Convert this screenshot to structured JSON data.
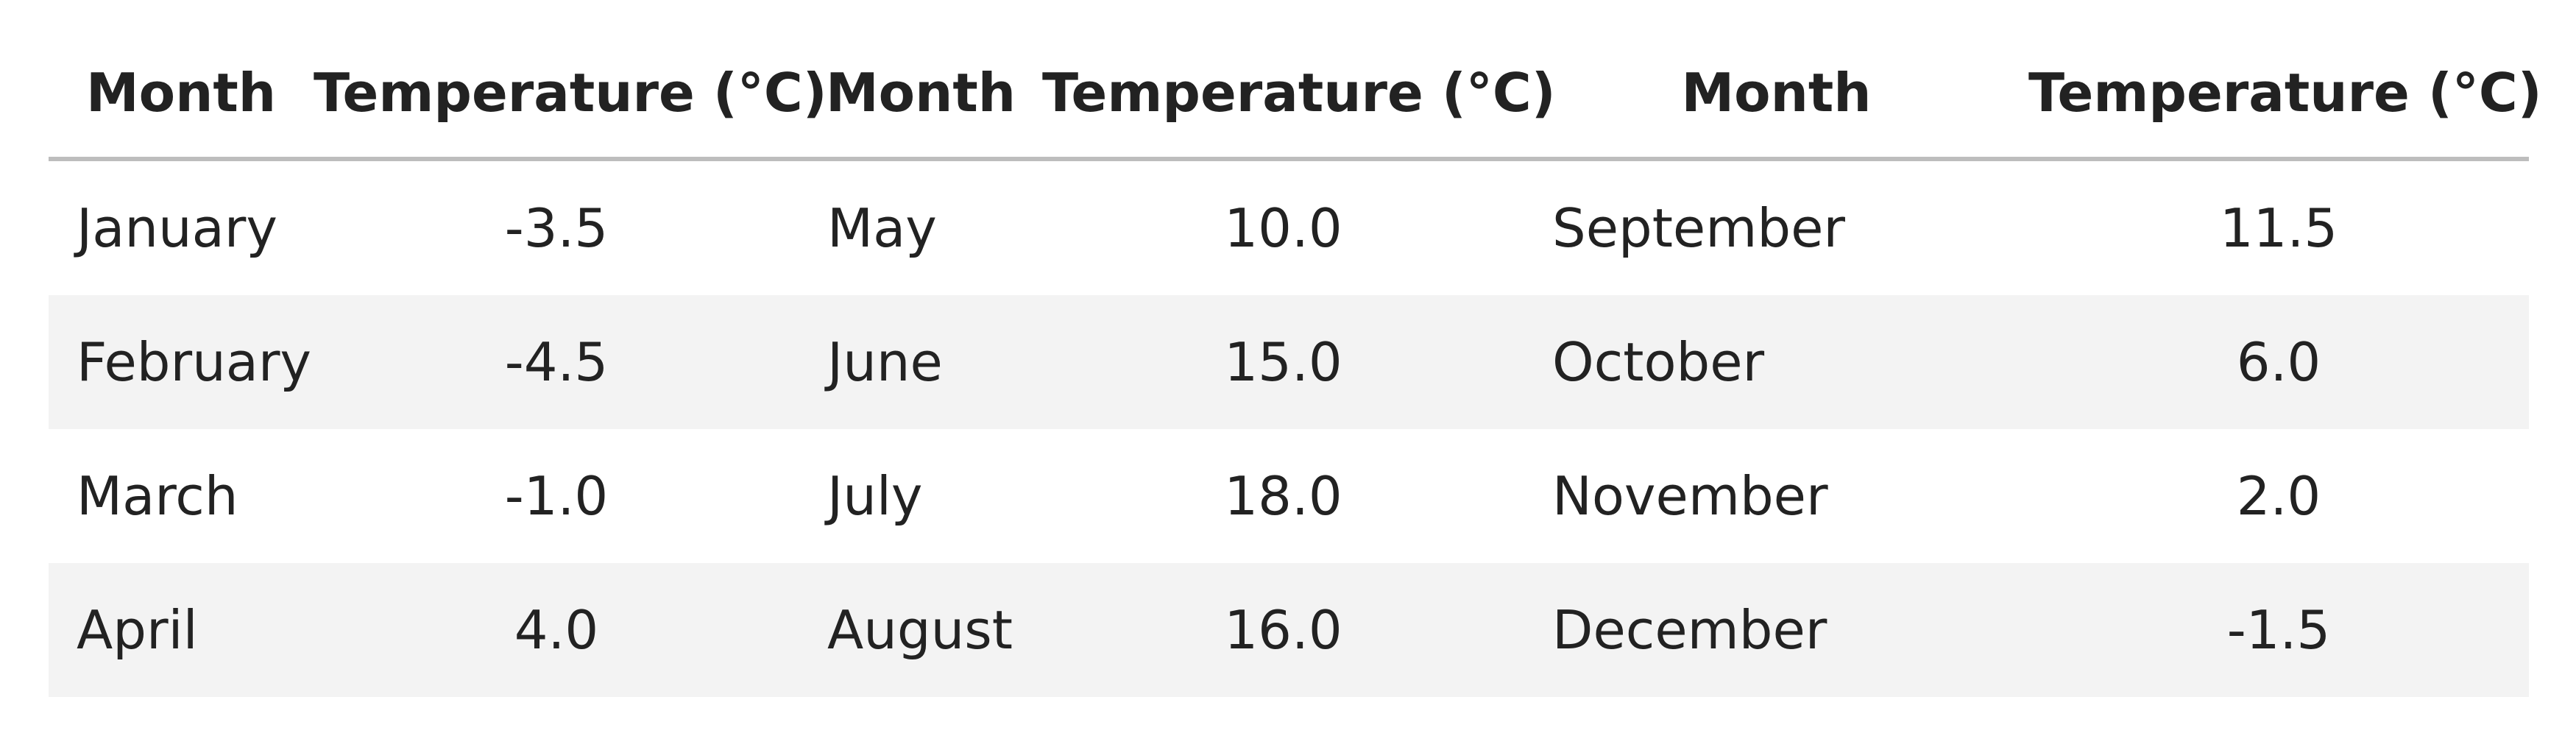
{
  "chart_data": {
    "type": "table",
    "columns": [
      "Month",
      "Temperature (°C)",
      "Month",
      "Temperature (°C)",
      "Month",
      "Temperature (°C)"
    ],
    "rows": [
      [
        "January",
        "-3.5",
        "May",
        "10.0",
        "September",
        "11.5"
      ],
      [
        "February",
        "-4.5",
        "June",
        "15.0",
        "October",
        "6.0"
      ],
      [
        "March",
        "-1.0",
        "July",
        "18.0",
        "November",
        "2.0"
      ],
      [
        "April",
        "4.0",
        "August",
        "16.0",
        "December",
        "-1.5"
      ]
    ],
    "stripe_color": "#f3f3f3",
    "header_rule_color": "#bdbdbd"
  }
}
